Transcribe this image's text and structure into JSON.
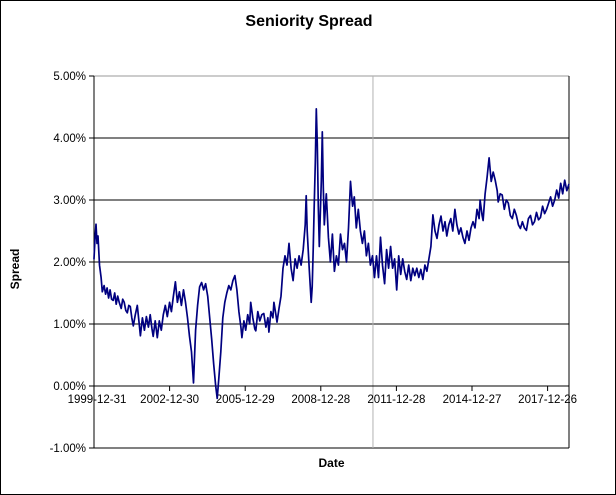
{
  "chart_data": {
    "type": "line",
    "title": "Seniority Spread",
    "xlabel": "Date",
    "ylabel": "Spread",
    "ylim": [
      -1.0,
      5.0
    ],
    "grid": {
      "horizontal": true,
      "gridline_color": "#000000",
      "top_gridline_color": "#999999",
      "vline_year": 2011.07,
      "vline_color": "#b2b2b2",
      "axis_color": "#000000"
    },
    "yticks": [
      {
        "value": 5,
        "label": "5.00%"
      },
      {
        "value": 4,
        "label": "4.00%"
      },
      {
        "value": 3,
        "label": "3.00%"
      },
      {
        "value": 2,
        "label": "2.00%"
      },
      {
        "value": 1,
        "label": "1.00%"
      },
      {
        "value": 0,
        "label": "0.00%"
      },
      {
        "value": -1,
        "label": "-1.00%"
      }
    ],
    "xticks": [
      {
        "year": 2000,
        "label": "1999-12-31"
      },
      {
        "year": 2003,
        "label": "2002-12-30"
      },
      {
        "year": 2006,
        "label": "2005-12-29"
      },
      {
        "year": 2009,
        "label": "2008-12-28"
      },
      {
        "year": 2012,
        "label": "2011-12-28"
      },
      {
        "year": 2015,
        "label": "2014-12-27"
      },
      {
        "year": 2018,
        "label": "2017-12-26"
      }
    ],
    "series": [
      {
        "name": "Seniority Spread",
        "color": "#000080",
        "points": [
          [
            2000.0,
            2.05
          ],
          [
            2000.04,
            2.38
          ],
          [
            2000.08,
            2.61
          ],
          [
            2000.12,
            2.3
          ],
          [
            2000.16,
            2.42
          ],
          [
            2000.22,
            1.95
          ],
          [
            2000.28,
            1.75
          ],
          [
            2000.33,
            1.52
          ],
          [
            2000.4,
            1.62
          ],
          [
            2000.46,
            1.48
          ],
          [
            2000.52,
            1.58
          ],
          [
            2000.58,
            1.42
          ],
          [
            2000.64,
            1.55
          ],
          [
            2000.7,
            1.4
          ],
          [
            2000.76,
            1.38
          ],
          [
            2000.82,
            1.5
          ],
          [
            2000.88,
            1.32
          ],
          [
            2000.94,
            1.45
          ],
          [
            2001.0,
            1.35
          ],
          [
            2001.08,
            1.25
          ],
          [
            2001.14,
            1.4
          ],
          [
            2001.2,
            1.35
          ],
          [
            2001.26,
            1.22
          ],
          [
            2001.32,
            1.18
          ],
          [
            2001.38,
            1.3
          ],
          [
            2001.44,
            1.28
          ],
          [
            2001.5,
            1.1
          ],
          [
            2001.56,
            0.97
          ],
          [
            2001.64,
            1.15
          ],
          [
            2001.72,
            1.3
          ],
          [
            2001.78,
            1.05
          ],
          [
            2001.84,
            0.81
          ],
          [
            2001.92,
            1.1
          ],
          [
            2002.0,
            0.9
          ],
          [
            2002.08,
            1.12
          ],
          [
            2002.16,
            0.95
          ],
          [
            2002.23,
            1.15
          ],
          [
            2002.3,
            0.92
          ],
          [
            2002.35,
            0.8
          ],
          [
            2002.43,
            1.05
          ],
          [
            2002.51,
            0.78
          ],
          [
            2002.59,
            1.05
          ],
          [
            2002.67,
            0.9
          ],
          [
            2002.75,
            1.15
          ],
          [
            2002.83,
            1.3
          ],
          [
            2002.91,
            1.12
          ],
          [
            2003.0,
            1.35
          ],
          [
            2003.07,
            1.2
          ],
          [
            2003.15,
            1.45
          ],
          [
            2003.23,
            1.68
          ],
          [
            2003.31,
            1.35
          ],
          [
            2003.39,
            1.52
          ],
          [
            2003.47,
            1.3
          ],
          [
            2003.55,
            1.55
          ],
          [
            2003.63,
            1.35
          ],
          [
            2003.71,
            1.1
          ],
          [
            2003.79,
            0.8
          ],
          [
            2003.87,
            0.55
          ],
          [
            2003.95,
            0.05
          ],
          [
            2004.03,
            0.9
          ],
          [
            2004.11,
            1.3
          ],
          [
            2004.19,
            1.6
          ],
          [
            2004.27,
            1.67
          ],
          [
            2004.35,
            1.55
          ],
          [
            2004.43,
            1.65
          ],
          [
            2004.51,
            1.45
          ],
          [
            2004.59,
            1.1
          ],
          [
            2004.67,
            0.75
          ],
          [
            2004.75,
            0.35
          ],
          [
            2004.83,
            0.0
          ],
          [
            2004.89,
            -0.2
          ],
          [
            2004.95,
            0.1
          ],
          [
            2005.03,
            0.55
          ],
          [
            2005.11,
            1.1
          ],
          [
            2005.19,
            1.35
          ],
          [
            2005.27,
            1.5
          ],
          [
            2005.35,
            1.62
          ],
          [
            2005.43,
            1.55
          ],
          [
            2005.51,
            1.7
          ],
          [
            2005.59,
            1.78
          ],
          [
            2005.67,
            1.55
          ],
          [
            2005.75,
            1.2
          ],
          [
            2005.83,
            0.95
          ],
          [
            2005.87,
            0.78
          ],
          [
            2005.95,
            1.05
          ],
          [
            2006.02,
            0.9
          ],
          [
            2006.1,
            1.15
          ],
          [
            2006.18,
            1.0
          ],
          [
            2006.22,
            1.35
          ],
          [
            2006.3,
            1.1
          ],
          [
            2006.38,
            0.92
          ],
          [
            2006.42,
            0.89
          ],
          [
            2006.5,
            1.2
          ],
          [
            2006.58,
            1.05
          ],
          [
            2006.66,
            1.15
          ],
          [
            2006.74,
            1.17
          ],
          [
            2006.82,
            0.95
          ],
          [
            2006.9,
            1.1
          ],
          [
            2006.94,
            0.87
          ],
          [
            2007.02,
            1.2
          ],
          [
            2007.1,
            1.1
          ],
          [
            2007.14,
            1.35
          ],
          [
            2007.22,
            1.15
          ],
          [
            2007.26,
            1.03
          ],
          [
            2007.34,
            1.25
          ],
          [
            2007.42,
            1.45
          ],
          [
            2007.5,
            1.9
          ],
          [
            2007.58,
            2.1
          ],
          [
            2007.66,
            1.95
          ],
          [
            2007.74,
            2.3
          ],
          [
            2007.82,
            1.9
          ],
          [
            2007.9,
            1.7
          ],
          [
            2007.98,
            2.05
          ],
          [
            2008.06,
            1.9
          ],
          [
            2008.14,
            2.1
          ],
          [
            2008.22,
            1.95
          ],
          [
            2008.3,
            2.2
          ],
          [
            2008.38,
            2.6
          ],
          [
            2008.42,
            3.07
          ],
          [
            2008.46,
            2.5
          ],
          [
            2008.54,
            1.9
          ],
          [
            2008.62,
            1.35
          ],
          [
            2008.66,
            1.6
          ],
          [
            2008.7,
            2.2
          ],
          [
            2008.74,
            2.9
          ],
          [
            2008.78,
            3.6
          ],
          [
            2008.82,
            4.47
          ],
          [
            2008.86,
            3.9
          ],
          [
            2008.9,
            2.9
          ],
          [
            2008.94,
            2.25
          ],
          [
            2009.02,
            3.3
          ],
          [
            2009.06,
            4.1
          ],
          [
            2009.1,
            3.2
          ],
          [
            2009.14,
            2.6
          ],
          [
            2009.22,
            3.1
          ],
          [
            2009.3,
            2.4
          ],
          [
            2009.38,
            2.0
          ],
          [
            2009.46,
            2.45
          ],
          [
            2009.54,
            1.85
          ],
          [
            2009.62,
            2.1
          ],
          [
            2009.7,
            1.95
          ],
          [
            2009.78,
            2.45
          ],
          [
            2009.86,
            2.2
          ],
          [
            2009.94,
            2.3
          ],
          [
            2010.02,
            2.0
          ],
          [
            2010.1,
            2.55
          ],
          [
            2010.18,
            3.3
          ],
          [
            2010.22,
            3.1
          ],
          [
            2010.26,
            2.9
          ],
          [
            2010.33,
            3.05
          ],
          [
            2010.41,
            2.55
          ],
          [
            2010.49,
            2.85
          ],
          [
            2010.57,
            2.5
          ],
          [
            2010.65,
            2.3
          ],
          [
            2010.73,
            2.5
          ],
          [
            2010.81,
            2.1
          ],
          [
            2010.89,
            2.3
          ],
          [
            2010.97,
            1.95
          ],
          [
            2011.05,
            2.1
          ],
          [
            2011.13,
            1.75
          ],
          [
            2011.21,
            2.1
          ],
          [
            2011.29,
            1.75
          ],
          [
            2011.37,
            2.4
          ],
          [
            2011.45,
            1.95
          ],
          [
            2011.53,
            1.65
          ],
          [
            2011.61,
            2.2
          ],
          [
            2011.69,
            1.9
          ],
          [
            2011.77,
            2.25
          ],
          [
            2011.85,
            1.9
          ],
          [
            2011.93,
            2.05
          ],
          [
            2012.01,
            1.55
          ],
          [
            2012.09,
            2.1
          ],
          [
            2012.17,
            1.8
          ],
          [
            2012.25,
            2.05
          ],
          [
            2012.33,
            1.85
          ],
          [
            2012.41,
            1.72
          ],
          [
            2012.49,
            1.95
          ],
          [
            2012.57,
            1.7
          ],
          [
            2012.65,
            1.9
          ],
          [
            2012.73,
            1.78
          ],
          [
            2012.81,
            1.9
          ],
          [
            2012.89,
            1.75
          ],
          [
            2012.97,
            1.88
          ],
          [
            2013.05,
            1.72
          ],
          [
            2013.13,
            1.95
          ],
          [
            2013.21,
            1.85
          ],
          [
            2013.29,
            2.05
          ],
          [
            2013.37,
            2.25
          ],
          [
            2013.45,
            2.76
          ],
          [
            2013.53,
            2.5
          ],
          [
            2013.61,
            2.38
          ],
          [
            2013.69,
            2.6
          ],
          [
            2013.77,
            2.74
          ],
          [
            2013.85,
            2.5
          ],
          [
            2013.93,
            2.65
          ],
          [
            2014.0,
            2.42
          ],
          [
            2014.08,
            2.6
          ],
          [
            2014.16,
            2.7
          ],
          [
            2014.24,
            2.5
          ],
          [
            2014.32,
            2.85
          ],
          [
            2014.4,
            2.6
          ],
          [
            2014.48,
            2.45
          ],
          [
            2014.56,
            2.55
          ],
          [
            2014.64,
            2.4
          ],
          [
            2014.72,
            2.3
          ],
          [
            2014.8,
            2.5
          ],
          [
            2014.88,
            2.35
          ],
          [
            2014.96,
            2.55
          ],
          [
            2015.04,
            2.65
          ],
          [
            2015.12,
            2.55
          ],
          [
            2015.2,
            2.85
          ],
          [
            2015.28,
            2.7
          ],
          [
            2015.32,
            3.0
          ],
          [
            2015.4,
            2.75
          ],
          [
            2015.44,
            2.67
          ],
          [
            2015.52,
            3.1
          ],
          [
            2015.6,
            3.37
          ],
          [
            2015.68,
            3.68
          ],
          [
            2015.76,
            3.3
          ],
          [
            2015.84,
            3.45
          ],
          [
            2015.92,
            3.32
          ],
          [
            2016.0,
            3.15
          ],
          [
            2016.04,
            2.97
          ],
          [
            2016.12,
            3.1
          ],
          [
            2016.2,
            3.08
          ],
          [
            2016.28,
            2.85
          ],
          [
            2016.36,
            3.0
          ],
          [
            2016.44,
            2.95
          ],
          [
            2016.52,
            2.75
          ],
          [
            2016.6,
            2.7
          ],
          [
            2016.68,
            2.85
          ],
          [
            2016.76,
            2.75
          ],
          [
            2016.84,
            2.6
          ],
          [
            2016.92,
            2.54
          ],
          [
            2017.0,
            2.65
          ],
          [
            2017.08,
            2.55
          ],
          [
            2017.16,
            2.51
          ],
          [
            2017.24,
            2.7
          ],
          [
            2017.32,
            2.75
          ],
          [
            2017.4,
            2.6
          ],
          [
            2017.48,
            2.65
          ],
          [
            2017.56,
            2.8
          ],
          [
            2017.64,
            2.68
          ],
          [
            2017.72,
            2.72
          ],
          [
            2017.8,
            2.9
          ],
          [
            2017.88,
            2.78
          ],
          [
            2017.96,
            2.85
          ],
          [
            2018.04,
            2.95
          ],
          [
            2018.12,
            3.05
          ],
          [
            2018.2,
            2.9
          ],
          [
            2018.28,
            3.0
          ],
          [
            2018.36,
            3.16
          ],
          [
            2018.44,
            3.03
          ],
          [
            2018.52,
            3.27
          ],
          [
            2018.6,
            3.1
          ],
          [
            2018.68,
            3.32
          ],
          [
            2018.76,
            3.15
          ],
          [
            2018.84,
            3.25
          ]
        ]
      }
    ]
  }
}
